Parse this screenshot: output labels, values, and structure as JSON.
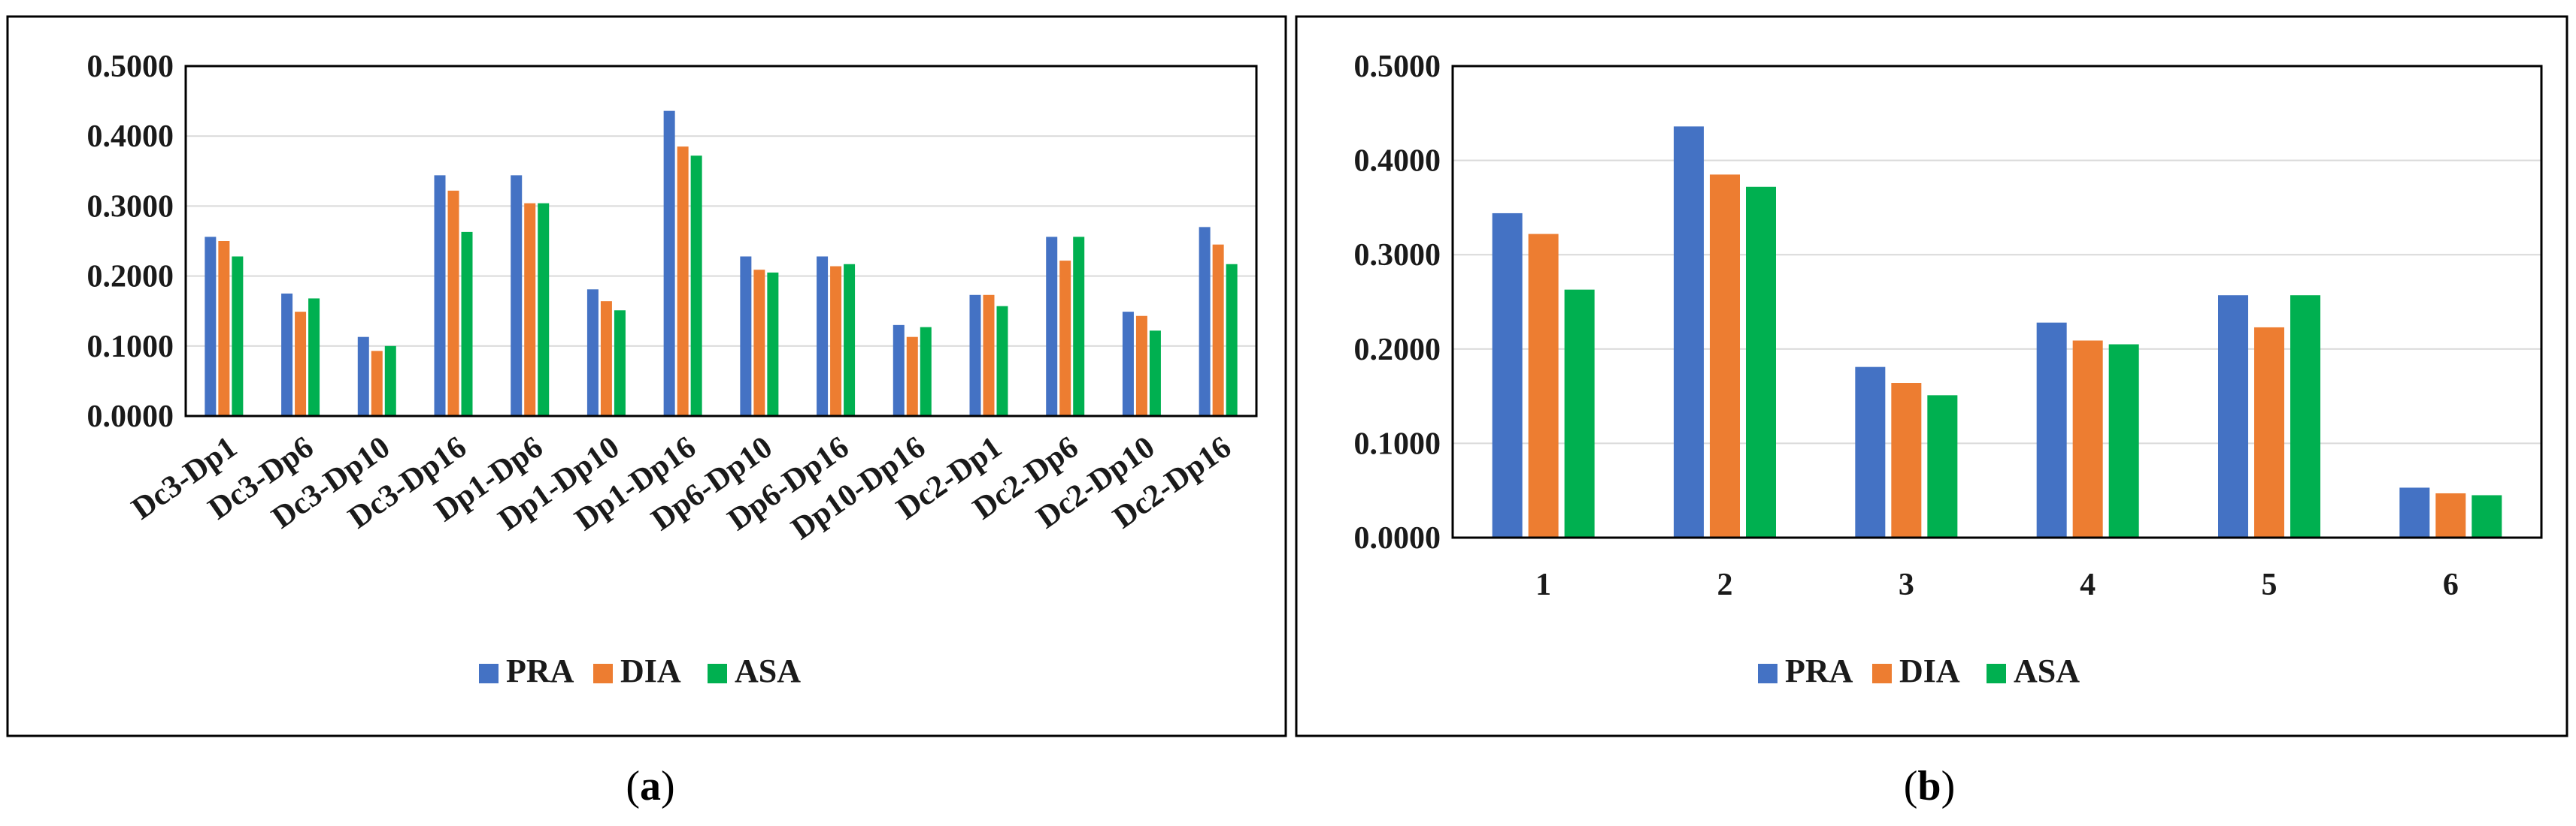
{
  "colors": {
    "PRA": "#4472C4",
    "DIA": "#ED7D31",
    "ASA": "#00B050",
    "gridline": "#D9D9D9",
    "frame": "#000000"
  },
  "chart_data": [
    {
      "type": "bar",
      "panel": "a",
      "caption": "a",
      "title": "",
      "xlabel": "",
      "ylabel": "",
      "ylim": [
        0,
        0.5
      ],
      "yticks": [
        "0.0000",
        "0.1000",
        "0.2000",
        "0.3000",
        "0.4000",
        "0.5000"
      ],
      "grid": true,
      "legend_position": "bottom",
      "categories": [
        "Dc3-Dp1",
        "Dc3-Dp6",
        "Dc3-Dp10",
        "Dc3-Dp16",
        "Dp1-Dp6",
        "Dp1-Dp10",
        "Dp1-Dp16",
        "Dp6-Dp10",
        "Dp6-Dp16",
        "Dp10-Dp16",
        "Dc2-Dp1",
        "Dc2-Dp6",
        "Dc2-Dp10",
        "Dc2-Dp16"
      ],
      "series": [
        {
          "name": "PRA",
          "values": [
            0.256,
            0.175,
            0.113,
            0.344,
            0.344,
            0.181,
            0.436,
            0.228,
            0.228,
            0.13,
            0.173,
            0.256,
            0.149,
            0.27
          ]
        },
        {
          "name": "DIA",
          "values": [
            0.25,
            0.149,
            0.093,
            0.322,
            0.304,
            0.164,
            0.385,
            0.209,
            0.214,
            0.113,
            0.173,
            0.222,
            0.143,
            0.245
          ]
        },
        {
          "name": "ASA",
          "values": [
            0.228,
            0.168,
            0.1,
            0.263,
            0.304,
            0.151,
            0.372,
            0.205,
            0.217,
            0.127,
            0.157,
            0.256,
            0.122,
            0.217
          ]
        }
      ]
    },
    {
      "type": "bar",
      "panel": "b",
      "caption": "b",
      "title": "",
      "xlabel": "",
      "ylabel": "",
      "ylim": [
        0,
        0.5
      ],
      "yticks": [
        "0.0000",
        "0.1000",
        "0.2000",
        "0.3000",
        "0.4000",
        "0.5000"
      ],
      "grid": true,
      "legend_position": "bottom",
      "categories": [
        "1",
        "2",
        "3",
        "4",
        "5",
        "6"
      ],
      "series": [
        {
          "name": "PRA",
          "values": [
            0.344,
            0.436,
            0.181,
            0.228,
            0.257,
            0.053
          ]
        },
        {
          "name": "DIA",
          "values": [
            0.322,
            0.385,
            0.164,
            0.209,
            0.223,
            0.047
          ]
        },
        {
          "name": "ASA",
          "values": [
            0.263,
            0.372,
            0.151,
            0.205,
            0.257,
            0.045
          ]
        }
      ]
    }
  ]
}
